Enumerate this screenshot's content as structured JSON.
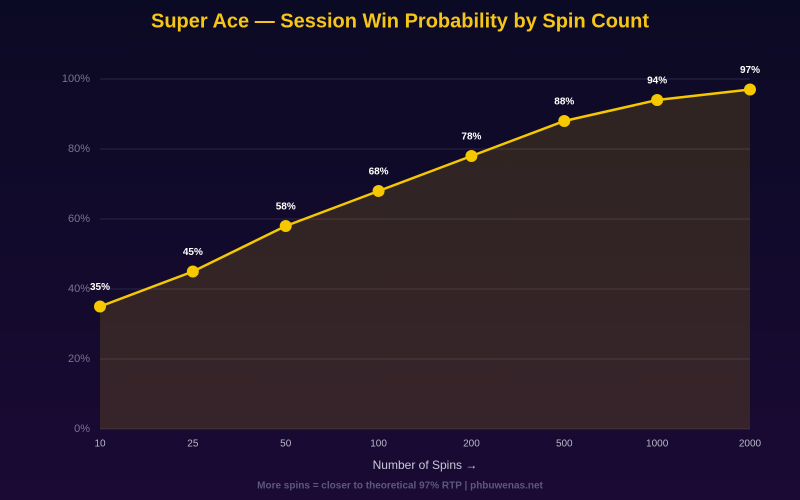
{
  "chart_data": {
    "type": "line",
    "title": "Super Ace — Session Win Probability by Spin Count",
    "x_label": "Number of Spins →",
    "footnote": "More spins = closer to theoretical 97% RTP | phbuwenas.net",
    "categories": [
      "10",
      "25",
      "50",
      "100",
      "200",
      "500",
      "1000",
      "2000"
    ],
    "values": [
      35,
      45,
      58,
      68,
      78,
      88,
      94,
      97
    ],
    "value_labels": [
      "35%",
      "45%",
      "58%",
      "68%",
      "78%",
      "88%",
      "94%",
      "97%"
    ],
    "color": "#f5c800",
    "ylim": [
      0,
      100
    ],
    "yticks": [
      {
        "value": 0,
        "label": "0%"
      },
      {
        "value": 20,
        "label": "20%"
      },
      {
        "value": 40,
        "label": "40%"
      },
      {
        "value": 60,
        "label": "60%"
      },
      {
        "value": 80,
        "label": "80%"
      },
      {
        "value": 100,
        "label": "100%"
      }
    ],
    "grid": true
  }
}
